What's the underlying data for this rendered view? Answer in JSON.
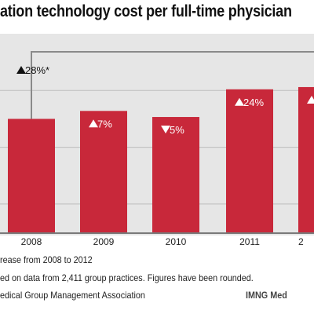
{
  "title": "ation technology cost per full-time physician",
  "chart_data": {
    "type": "bar",
    "categories": [
      "2008",
      "2009",
      "2010",
      "2011",
      "2"
    ],
    "values": [
      100,
      107,
      101.65,
      126.05,
      128
    ],
    "ylim": [
      0,
      175
    ],
    "grid": true,
    "bar_color": "#c8283a",
    "annotations": [
      {
        "arrow": "up",
        "text": "28%*"
      },
      {
        "arrow": "up",
        "text": "7%"
      },
      {
        "arrow": "down",
        "text": "5%"
      },
      {
        "arrow": "up",
        "text": "24%"
      },
      {
        "arrow": "up",
        "text": ""
      }
    ],
    "bracket": {
      "from": "2008",
      "to": "2"
    }
  },
  "footnotes": {
    "note1": "rease from 2008 to 2012",
    "note2": "ed on data from 2,411 group practices. Figures have been rounded.",
    "source": "edical Group Management Association",
    "credit": "IMNG Med"
  }
}
